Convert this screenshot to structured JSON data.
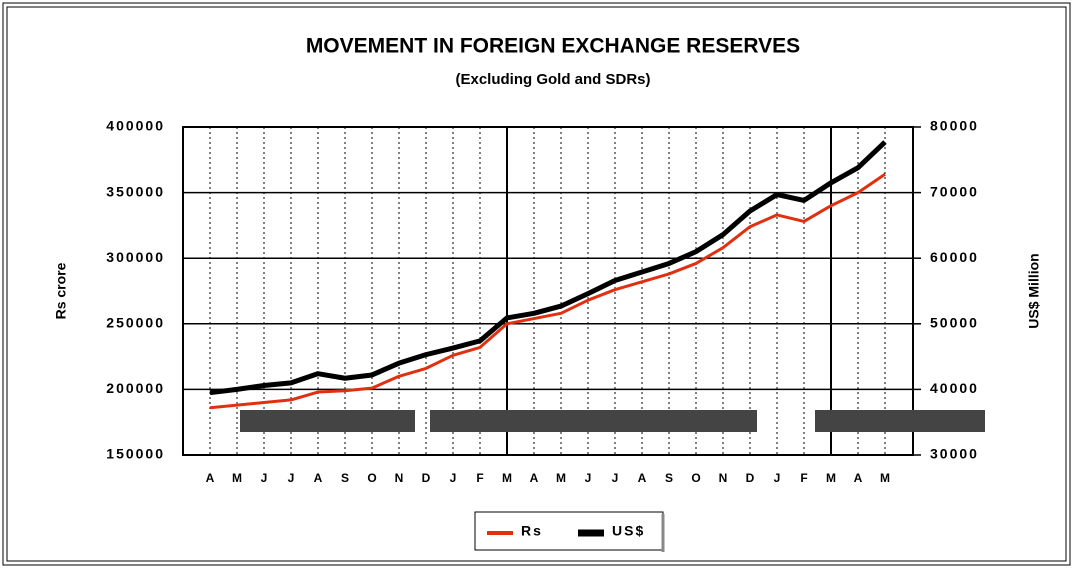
{
  "chart_data": {
    "type": "line",
    "title": "MOVEMENT IN FOREIGN EXCHANGE RESERVES",
    "subtitle": "(Excluding Gold and SDRs)",
    "y_label": "Rs crore",
    "y2_label": "US$ Million",
    "categories": [
      "A",
      "M",
      "J",
      "J",
      "A",
      "S",
      "O",
      "N",
      "D",
      "J",
      "F",
      "M",
      "A",
      "M",
      "J",
      "J",
      "A",
      "S",
      "O",
      "N",
      "D",
      "J",
      "F",
      "M",
      "A",
      "M"
    ],
    "series": [
      {
        "name": "Rs",
        "color": "#e03010",
        "values": [
          186000,
          188000,
          190000,
          192000,
          198000,
          199000,
          201000,
          210000,
          216000,
          226000,
          232000,
          250000,
          254000,
          258000,
          268000,
          276000,
          282000,
          288000,
          296000,
          308000,
          324000,
          333000,
          328000,
          340000,
          350000,
          364000
        ]
      },
      {
        "name": "US$",
        "color": "#000000",
        "axis": "y2",
        "values": [
          39500,
          40000,
          40600,
          41000,
          42400,
          41700,
          42200,
          44000,
          45300,
          46300,
          47400,
          50900,
          51600,
          52700,
          54600,
          56600,
          57900,
          59200,
          61000,
          63600,
          67200,
          69700,
          68800,
          71500,
          73800,
          77700
        ]
      }
    ],
    "ylim": [
      150000,
      400000
    ],
    "yticks": [
      150000,
      200000,
      250000,
      300000,
      350000,
      400000
    ],
    "y2lim": [
      30000,
      80000
    ],
    "y2ticks": [
      30000,
      40000,
      50000,
      60000,
      70000,
      80000
    ],
    "grid": true,
    "legend": "bottom"
  }
}
